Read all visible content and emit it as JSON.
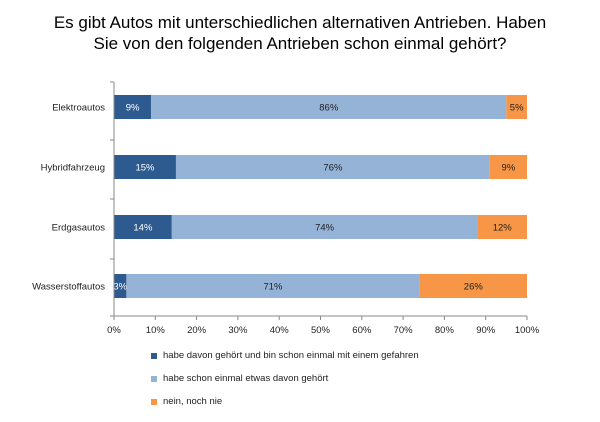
{
  "chart_data": {
    "type": "bar",
    "orientation": "horizontal",
    "stacked": "percent",
    "title": "Es gibt Autos mit unterschiedlichen alternativen Antrieben. Haben Sie von den folgenden Antrieben schon einmal gehört?",
    "categories": [
      "Elektroautos",
      "Hybridfahrzeug",
      "Erdgasautos",
      "Wasserstoffautos"
    ],
    "series": [
      {
        "name": "habe davon gehört und bin schon einmal mit einem gefahren",
        "color": "#2E5B8F",
        "values": [
          9,
          15,
          14,
          3
        ],
        "labels": [
          "9%",
          "15%",
          "14%",
          "3%"
        ]
      },
      {
        "name": "habe schon einmal etwas davon gehört",
        "color": "#95B3D7",
        "values": [
          86,
          76,
          74,
          71
        ],
        "labels": [
          "86%",
          "76%",
          "74%",
          "71%"
        ]
      },
      {
        "name": "nein, noch nie",
        "color": "#F79646",
        "values": [
          5,
          9,
          12,
          26
        ],
        "labels": [
          "5%",
          "9%",
          "12%",
          "26%"
        ]
      }
    ],
    "xlim": [
      0,
      100
    ],
    "xticks": [
      "0%",
      "10%",
      "20%",
      "30%",
      "40%",
      "50%",
      "60%",
      "70%",
      "80%",
      "90%",
      "100%"
    ],
    "grid": false,
    "legend": "bottom"
  }
}
